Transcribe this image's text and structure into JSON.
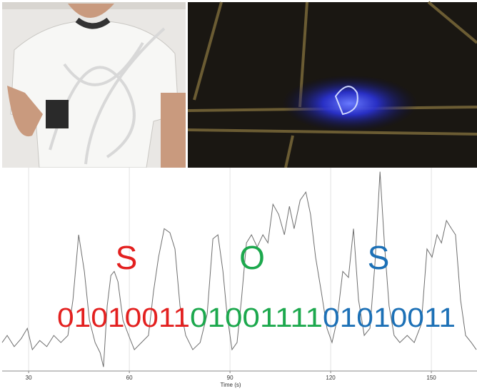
{
  "chart_data": {
    "type": "line",
    "xlabel": "Time (s)",
    "x": [
      22.1,
      23.6,
      25.7,
      27.8,
      29.6,
      31.1,
      33.3,
      35.4,
      37.5,
      39.6,
      41.7,
      43.2,
      44.9,
      46.6,
      48.1,
      49.8,
      51.3,
      52.3,
      53.4,
      54.5,
      55.5,
      56.6,
      58.1,
      59.8,
      61.5,
      63.6,
      65.7,
      67.2,
      68.7,
      70.4,
      72.1,
      73.6,
      75.1,
      76.8,
      78.9,
      81.1,
      83.2,
      84.9,
      86.4,
      87.9,
      89.1,
      90.6,
      92.1,
      93.4,
      94.9,
      96.4,
      98.1,
      99.8,
      101.3,
      102.8,
      104.5,
      106.2,
      107.7,
      109.1,
      110.9,
      112.6,
      114.0,
      115.5,
      117.2,
      118.9,
      120.4,
      121.9,
      123.6,
      125.3,
      126.8,
      128.3,
      130.0,
      131.7,
      133.2,
      134.7,
      136.0,
      137.4,
      138.9,
      140.6,
      142.8,
      144.9,
      147.0,
      148.7,
      150.2,
      151.7,
      153.0,
      154.5,
      156.0,
      157.2,
      158.7,
      160.2,
      161.9,
      163.4
    ],
    "values": [
      14,
      17.5,
      12,
      16,
      21,
      10.5,
      15,
      12,
      17.5,
      14,
      17.5,
      35,
      67,
      49,
      25,
      14,
      9,
      2,
      32,
      47,
      49,
      44,
      25,
      17.5,
      10.5,
      14,
      17.5,
      39,
      56,
      70,
      68,
      60,
      32,
      17.5,
      10.5,
      14,
      28,
      65,
      67,
      49,
      28,
      10.5,
      14,
      35,
      63,
      67,
      61,
      67,
      63,
      82,
      77,
      67,
      81,
      70,
      84,
      88,
      77,
      56,
      39,
      21,
      14,
      25,
      49,
      46,
      70,
      35,
      17.5,
      21,
      53,
      98,
      63,
      32,
      17.5,
      14,
      17.5,
      14,
      23,
      60,
      56,
      67,
      63,
      74,
      70,
      67,
      35,
      17.5,
      14,
      10.5
    ],
    "color": "#6e6e6e",
    "xlim": [
      22.1,
      163.6
    ],
    "xticks": [
      30,
      60,
      90,
      120,
      150
    ],
    "ylim": [
      0,
      100
    ],
    "grid": true,
    "annotations": [
      {
        "text": "S",
        "color": "#e3201f"
      },
      {
        "text": "O",
        "color": "#1ca84d"
      },
      {
        "text": "S",
        "color": "#1c70b6"
      },
      {
        "text": "01010011",
        "color": "#e3201f"
      },
      {
        "text": "01001111",
        "color": "#1ca84d"
      },
      {
        "text": "01010011",
        "color": "#1c70b6"
      }
    ]
  }
}
